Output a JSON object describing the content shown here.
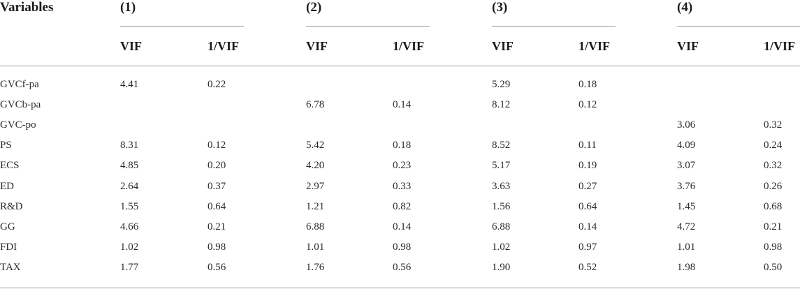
{
  "table": {
    "stub_header": "Variables",
    "models": [
      "(1)",
      "(2)",
      "(3)",
      "(4)"
    ],
    "subheaders": [
      "VIF",
      "1/VIF"
    ],
    "rows": [
      {
        "name": "GVCf-pa",
        "values": [
          "4.41",
          "0.22",
          "",
          "",
          "5.29",
          "0.18",
          "",
          ""
        ]
      },
      {
        "name": "GVCb-pa",
        "values": [
          "",
          "",
          "6.78",
          "0.14",
          "8.12",
          "0.12",
          "",
          ""
        ]
      },
      {
        "name": "GVC-po",
        "values": [
          "",
          "",
          "",
          "",
          "",
          "",
          "3.06",
          "0.32"
        ]
      },
      {
        "name": "PS",
        "values": [
          "8.31",
          "0.12",
          "5.42",
          "0.18",
          "8.52",
          "0.11",
          "4.09",
          "0.24"
        ]
      },
      {
        "name": "ECS",
        "values": [
          "4.85",
          "0.20",
          "4.20",
          "0.23",
          "5.17",
          "0.19",
          "3.07",
          "0.32"
        ]
      },
      {
        "name": "ED",
        "values": [
          "2.64",
          "0.37",
          "2.97",
          "0.33",
          "3.63",
          "0.27",
          "3.76",
          "0.26"
        ]
      },
      {
        "name": "R&D",
        "values": [
          "1.55",
          "0.64",
          "1.21",
          "0.82",
          "1.56",
          "0.64",
          "1.45",
          "0.68"
        ]
      },
      {
        "name": "GG",
        "values": [
          "4.66",
          "0.21",
          "6.88",
          "0.14",
          "6.88",
          "0.14",
          "4.72",
          "0.21"
        ]
      },
      {
        "name": "FDI",
        "values": [
          "1.02",
          "0.98",
          "1.01",
          "0.98",
          "1.02",
          "0.97",
          "1.01",
          "0.98"
        ]
      },
      {
        "name": "TAX",
        "values": [
          "1.77",
          "0.56",
          "1.76",
          "0.56",
          "1.90",
          "0.52",
          "1.98",
          "0.50"
        ]
      }
    ]
  }
}
